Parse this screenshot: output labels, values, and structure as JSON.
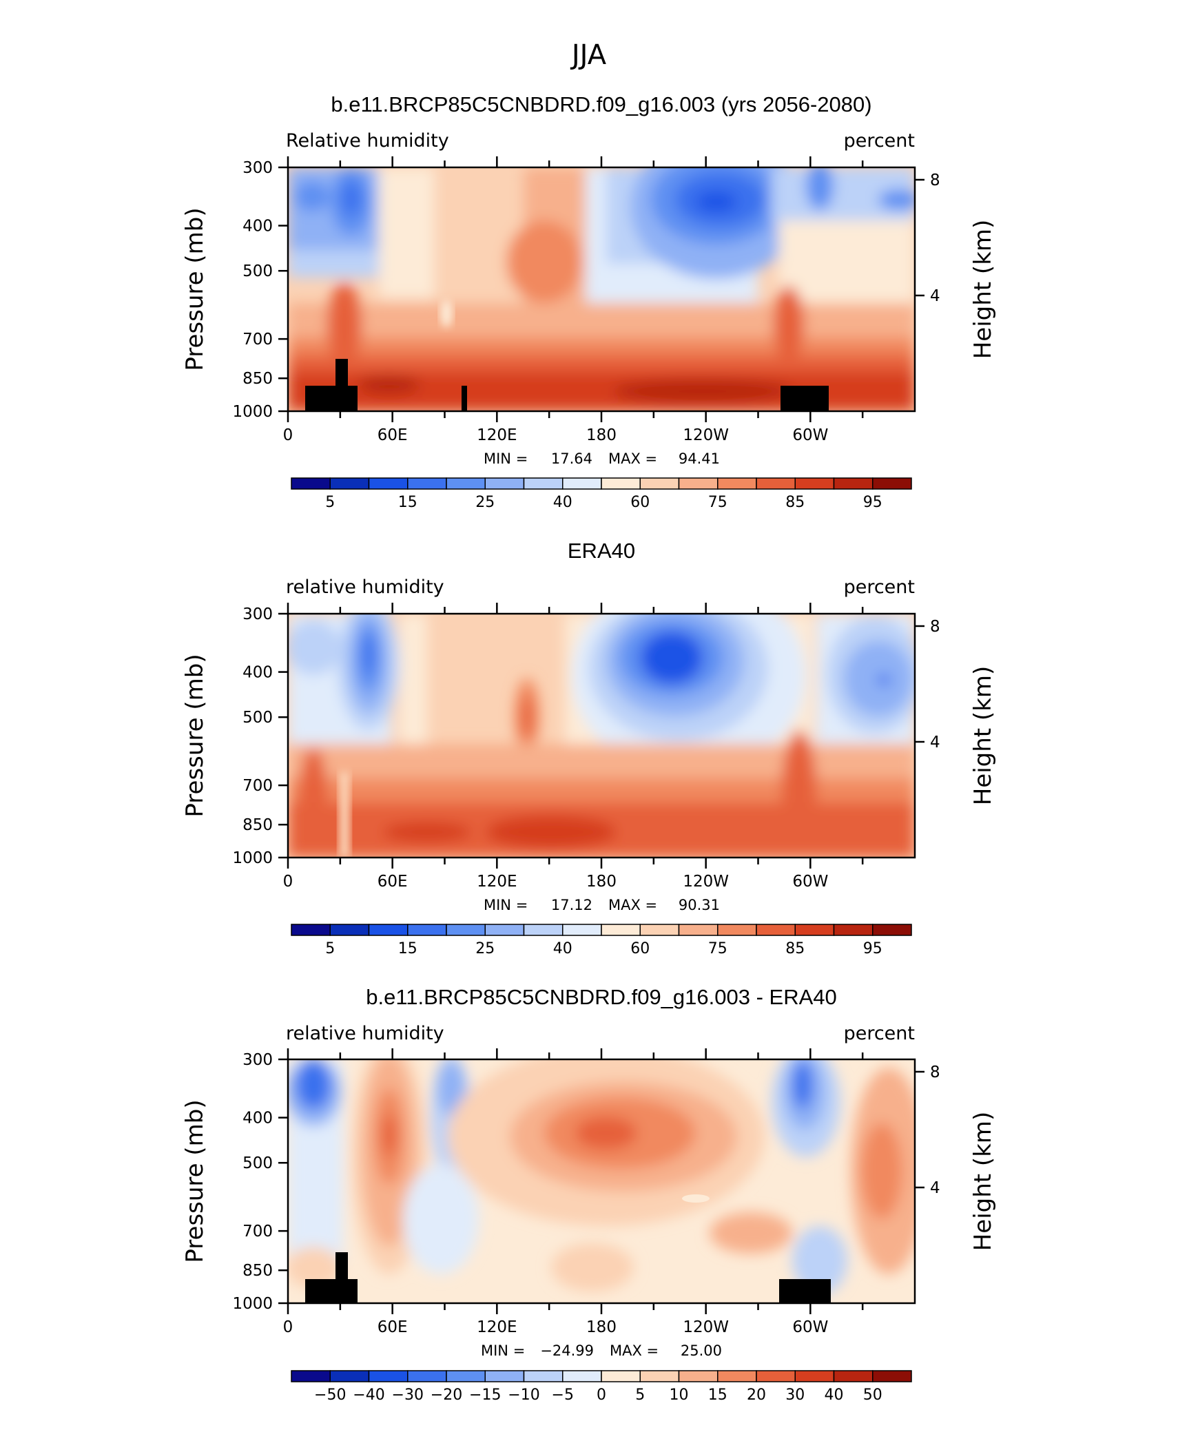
{
  "figure": {
    "title": "JJA"
  },
  "colors": {
    "rh_levels": [
      "#0a0a8c",
      "#0a2fb8",
      "#1a52e6",
      "#3b71ee",
      "#5e90f2",
      "#8fb1f5",
      "#bcd2f8",
      "#e1ecfb",
      "#fdebd7",
      "#fbd2b4",
      "#f7b08c",
      "#f1895f",
      "#e6603a",
      "#d63e1f",
      "#b82510",
      "#8c0e06"
    ],
    "diff_levels": [
      "#0a0a8c",
      "#0a2fb8",
      "#1a52e6",
      "#3b71ee",
      "#5e90f2",
      "#8fb1f5",
      "#bcd2f8",
      "#e1ecfb",
      "#fdebd7",
      "#fbd2b4",
      "#f7b08c",
      "#f1895f",
      "#e6603a",
      "#d63e1f",
      "#b82510",
      "#8c0e06"
    ],
    "topography": "#000000"
  },
  "panels": [
    {
      "title": "b.e11.BRCP85C5CNBDRD.f09_g16.003 (yrs 2056-2080)",
      "left_label": "Relative humidity",
      "right_label": "percent",
      "stats_min_label": "MIN =",
      "stats_min": "17.64",
      "stats_max_label": "MAX =",
      "stats_max": "94.41",
      "y_axis_label": "Pressure (mb)",
      "y2_axis_label": "Height (km)",
      "y_ticks": [
        "300",
        "400",
        "500",
        "700",
        "850",
        "1000"
      ],
      "y2_ticks": [
        "8",
        "4"
      ],
      "x_ticks": [
        "0",
        "60E",
        "120E",
        "180",
        "120W",
        "60W"
      ],
      "colorbar_labels": [
        "5",
        "15",
        "25",
        "40",
        "60",
        "75",
        "85",
        "95"
      ],
      "show_topography": true,
      "palette": "rh_levels"
    },
    {
      "title": "ERA40",
      "left_label": "relative humidity",
      "right_label": "percent",
      "stats_min_label": "MIN =",
      "stats_min": "17.12",
      "stats_max_label": "MAX =",
      "stats_max": "90.31",
      "y_axis_label": "Pressure (mb)",
      "y2_axis_label": "Height (km)",
      "y_ticks": [
        "300",
        "400",
        "500",
        "700",
        "850",
        "1000"
      ],
      "y2_ticks": [
        "8",
        "4"
      ],
      "x_ticks": [
        "0",
        "60E",
        "120E",
        "180",
        "120W",
        "60W"
      ],
      "colorbar_labels": [
        "5",
        "15",
        "25",
        "40",
        "60",
        "75",
        "85",
        "95"
      ],
      "show_topography": false,
      "palette": "rh_levels"
    },
    {
      "title": "b.e11.BRCP85C5CNBDRD.f09_g16.003 - ERA40",
      "left_label": "relative humidity",
      "right_label": "percent",
      "stats_min_label": "MIN =",
      "stats_min": "−24.99",
      "stats_max_label": "MAX =",
      "stats_max": "25.00",
      "y_axis_label": "Pressure (mb)",
      "y2_axis_label": "Height (km)",
      "y_ticks": [
        "300",
        "400",
        "500",
        "700",
        "850",
        "1000"
      ],
      "y2_ticks": [
        "8",
        "4"
      ],
      "x_ticks": [
        "0",
        "60E",
        "120E",
        "180",
        "120W",
        "60W"
      ],
      "colorbar_labels": [
        "−50",
        "−40",
        "−30",
        "−20",
        "−15",
        "−10",
        "−5",
        "0",
        "5",
        "10",
        "15",
        "20",
        "30",
        "40",
        "50"
      ],
      "show_topography": true,
      "palette": "diff_levels"
    }
  ],
  "chart_data": [
    {
      "type": "heatmap",
      "title": "b.e11.BRCP85C5CNBDRD.f09_g16.003 (yrs 2056-2080)",
      "variable": "Relative humidity",
      "units": "percent",
      "xlabel": "",
      "ylabel": "Pressure (mb)",
      "y2label": "Height (km)",
      "x_tick_labels": [
        "0",
        "60E",
        "120E",
        "180",
        "120W",
        "60W"
      ],
      "y_ticks": [
        300,
        400,
        500,
        700,
        850,
        1000
      ],
      "y2_ticks": [
        8,
        4
      ],
      "contour_levels": [
        5,
        10,
        15,
        20,
        25,
        30,
        40,
        50,
        60,
        65,
        75,
        80,
        85,
        90,
        95
      ],
      "colorbar_labels": [
        5,
        15,
        25,
        40,
        60,
        75,
        85,
        95
      ],
      "min": 17.64,
      "max": 94.41
    },
    {
      "type": "heatmap",
      "title": "ERA40",
      "variable": "relative humidity",
      "units": "percent",
      "xlabel": "",
      "ylabel": "Pressure (mb)",
      "y2label": "Height (km)",
      "x_tick_labels": [
        "0",
        "60E",
        "120E",
        "180",
        "120W",
        "60W"
      ],
      "y_ticks": [
        300,
        400,
        500,
        700,
        850,
        1000
      ],
      "y2_ticks": [
        8,
        4
      ],
      "contour_levels": [
        5,
        10,
        15,
        20,
        25,
        30,
        40,
        50,
        60,
        65,
        75,
        80,
        85,
        90,
        95
      ],
      "colorbar_labels": [
        5,
        15,
        25,
        40,
        60,
        75,
        85,
        95
      ],
      "min": 17.12,
      "max": 90.31
    },
    {
      "type": "heatmap",
      "title": "b.e11.BRCP85C5CNBDRD.f09_g16.003 - ERA40",
      "variable": "relative humidity",
      "units": "percent",
      "xlabel": "",
      "ylabel": "Pressure (mb)",
      "y2label": "Height (km)",
      "x_tick_labels": [
        "0",
        "60E",
        "120E",
        "180",
        "120W",
        "60W"
      ],
      "y_ticks": [
        300,
        400,
        500,
        700,
        850,
        1000
      ],
      "y2_ticks": [
        8,
        4
      ],
      "contour_levels": [
        -50,
        -40,
        -30,
        -20,
        -15,
        -10,
        -5,
        0,
        5,
        10,
        15,
        20,
        30,
        40,
        50
      ],
      "colorbar_labels": [
        -50,
        -40,
        -30,
        -20,
        -15,
        -10,
        -5,
        0,
        5,
        10,
        15,
        20,
        30,
        40,
        50
      ],
      "min": -24.99,
      "max": 25.0
    }
  ]
}
